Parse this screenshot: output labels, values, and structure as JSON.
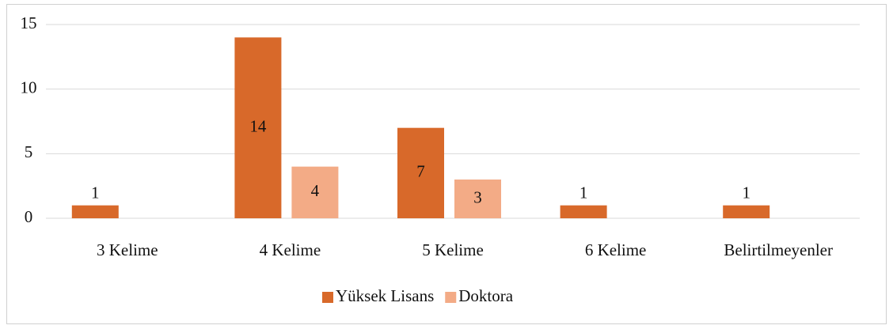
{
  "chart_data": {
    "type": "bar",
    "categories": [
      "3 Kelime",
      "4 Kelime",
      "5 Kelime",
      "6 Kelime",
      "Belirtilmeyenler"
    ],
    "series": [
      {
        "name": "Yüksek Lisans",
        "color": "#d8692a",
        "values": [
          1,
          14,
          7,
          1,
          1
        ]
      },
      {
        "name": "Doktora",
        "color": "#f3ab86",
        "values": [
          null,
          4,
          3,
          null,
          null
        ]
      }
    ],
    "ylim": [
      0,
      15
    ],
    "yticks": [
      0,
      5,
      10,
      15
    ],
    "grid": true,
    "legend": "bottom"
  }
}
